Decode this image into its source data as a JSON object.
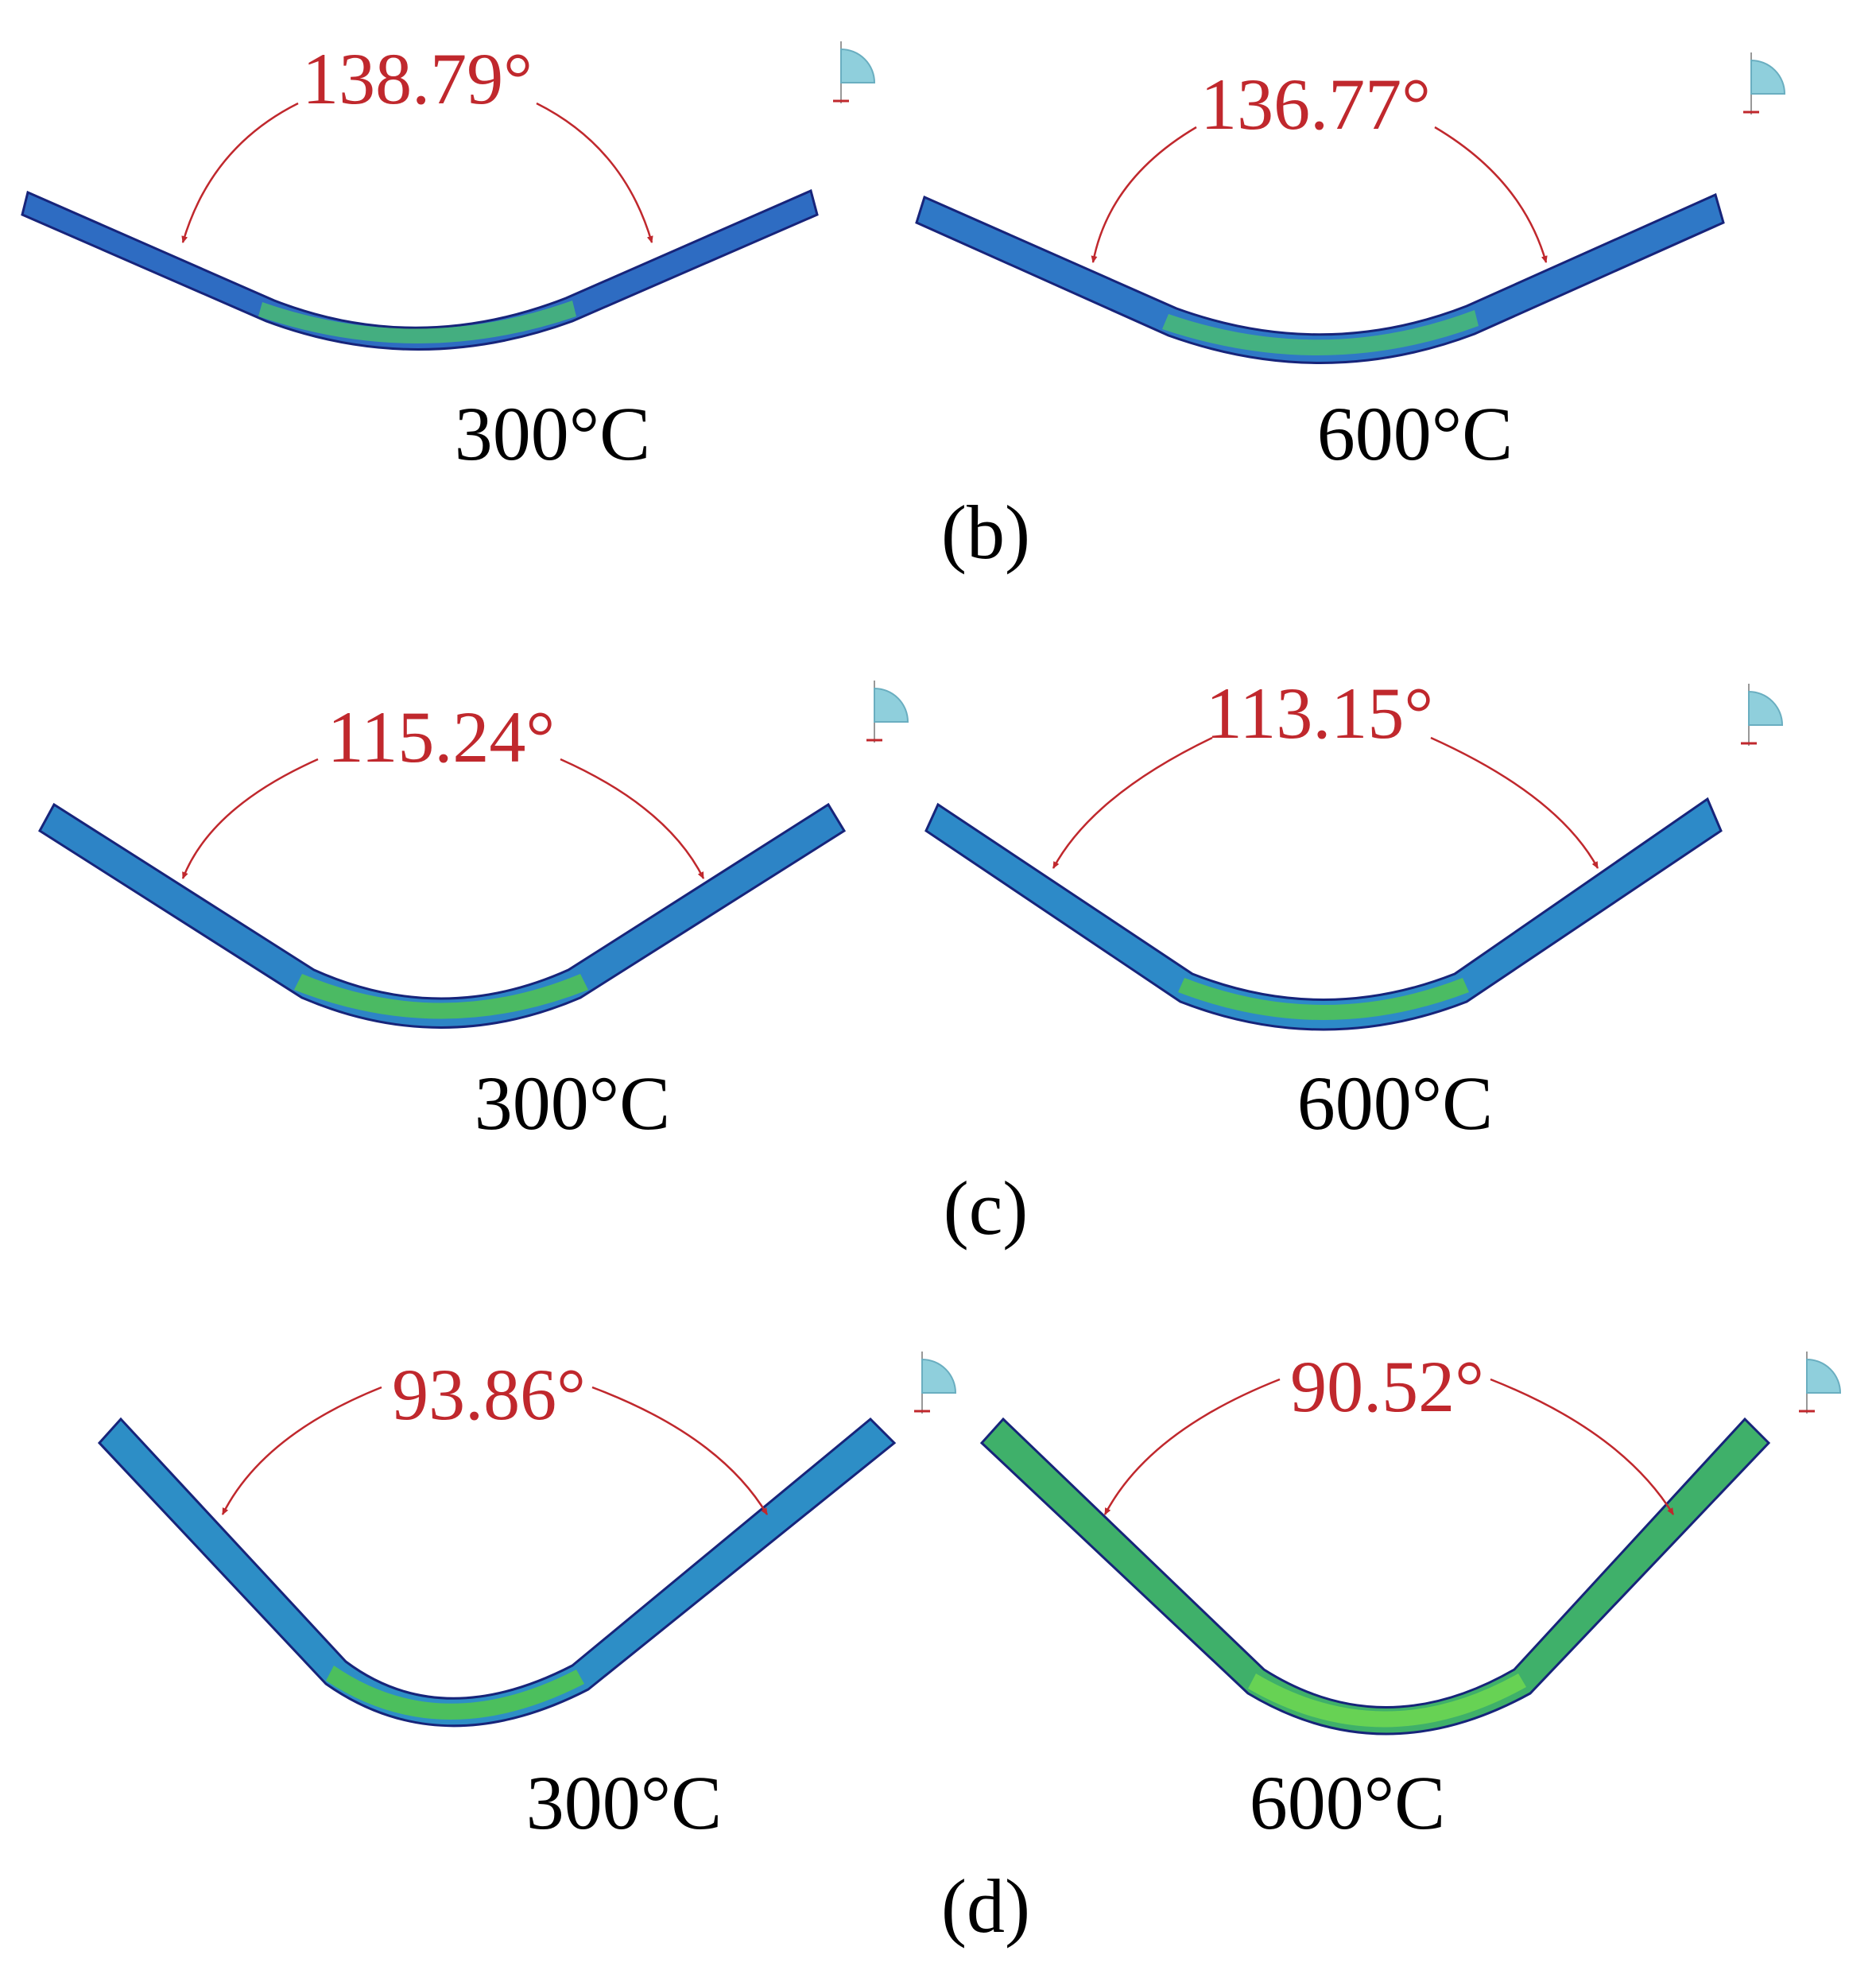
{
  "figure": {
    "panels": [
      {
        "label": "(b)",
        "cases": [
          {
            "temperature": "300°C",
            "angle_deg": 138.79,
            "angle_text": "138.79°"
          },
          {
            "temperature": "600°C",
            "angle_deg": 136.77,
            "angle_text": "136.77°"
          }
        ]
      },
      {
        "label": "(c)",
        "cases": [
          {
            "temperature": "300°C",
            "angle_deg": 115.24,
            "angle_text": "115.24°"
          },
          {
            "temperature": "600°C",
            "angle_deg": 113.15,
            "angle_text": "113.15°"
          }
        ]
      },
      {
        "label": "(d)",
        "cases": [
          {
            "temperature": "300°C",
            "angle_deg": 93.86,
            "angle_text": "93.86°"
          },
          {
            "temperature": "600°C",
            "angle_deg": 90.52,
            "angle_text": "90.52°"
          }
        ]
      }
    ],
    "colors": {
      "angle_annotation": "#c0282d",
      "stress_low": "#1a2fa8",
      "stress_mid": "#2a8fc4",
      "stress_high": "#49c84a",
      "triad_icon": "#8fcfdc"
    },
    "icons": [
      "coordinate-triad-icon"
    ]
  }
}
